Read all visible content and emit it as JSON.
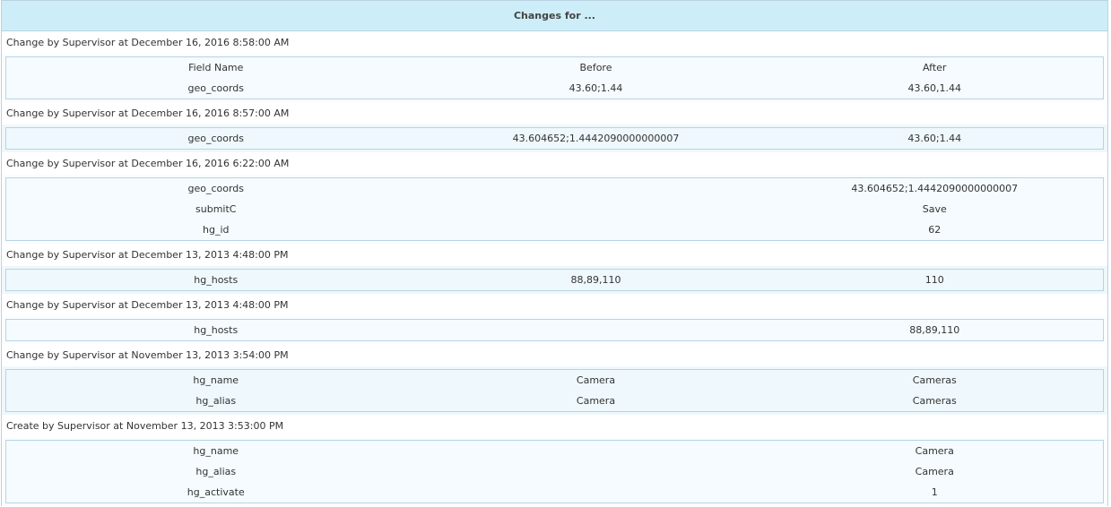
{
  "title": "Changes for ...",
  "columns": [
    "Field Name",
    "Before",
    "After"
  ],
  "changes": [
    {
      "label": "Change by Supervisor at December 16, 2016 8:58:00 AM",
      "show_header": true,
      "rows": [
        [
          "geo_coords",
          "43.60;1.44",
          "43.60,1.44"
        ]
      ]
    },
    {
      "label": "Change by Supervisor at December 16, 2016 8:57:00 AM",
      "rows": [
        [
          "geo_coords",
          "43.604652;1.4442090000000007",
          "43.60;1.44"
        ]
      ]
    },
    {
      "label": "Change by Supervisor at December 16, 2016 6:22:00 AM",
      "rows": [
        [
          "geo_coords",
          "",
          "43.604652;1.4442090000000007"
        ],
        [
          "submitC",
          "",
          "Save"
        ],
        [
          "hg_id",
          "",
          "62"
        ]
      ]
    },
    {
      "label": "Change by Supervisor at December 13, 2013 4:48:00 PM",
      "rows": [
        [
          "hg_hosts",
          "88,89,110",
          "110"
        ]
      ]
    },
    {
      "label": "Change by Supervisor at December 13, 2013 4:48:00 PM",
      "rows": [
        [
          "hg_hosts",
          "",
          "88,89,110"
        ]
      ]
    },
    {
      "label": "Change by Supervisor at November 13, 2013 3:54:00 PM",
      "rows": [
        [
          "hg_name",
          "Camera",
          "Cameras"
        ],
        [
          "hg_alias",
          "Camera",
          "Cameras"
        ]
      ]
    },
    {
      "label": "Create by Supervisor at November 13, 2013 3:53:00 PM",
      "rows": [
        [
          "hg_name",
          "",
          "Camera"
        ],
        [
          "hg_alias",
          "",
          "Camera"
        ],
        [
          "hg_activate",
          "",
          "1"
        ]
      ]
    }
  ]
}
